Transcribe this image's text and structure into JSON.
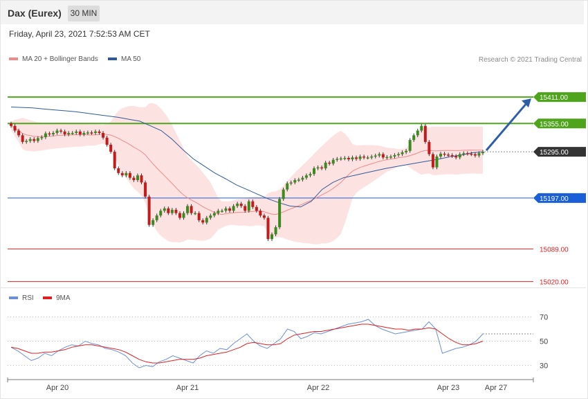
{
  "header": {
    "title": "Dax (Eurex)",
    "interval": "30 MIN"
  },
  "datetime": "Friday, April 23, 2021 7:52:53 AM CET",
  "legend": {
    "ma20": {
      "label": "MA 20 + Bollinger Bands",
      "color": "#f08a8a"
    },
    "ma50": {
      "label": "MA 50",
      "color": "#2f5a9a"
    }
  },
  "credit": "Research © 2021 Trading Central",
  "rsi_legend": {
    "rsi": {
      "label": "RSI",
      "color": "#6b8fd8"
    },
    "ma9": {
      "label": "9MA",
      "color": "#e02020"
    }
  },
  "chart_data": [
    {
      "type": "candlestick",
      "x_labels": [
        "Apr 20",
        "Apr 21",
        "Apr 22",
        "Apr 23",
        "Apr 27"
      ],
      "levels": [
        {
          "value": 15411.0,
          "label": "15411.00",
          "color": "#4ea51c",
          "style": "resistance"
        },
        {
          "value": 15355.0,
          "label": "15355.00",
          "color": "#4ea51c",
          "style": "resistance"
        },
        {
          "value": 15295.0,
          "label": "15295.00",
          "color": "#333333",
          "style": "last"
        },
        {
          "value": 15197.0,
          "label": "15197.00",
          "color": "#1a5fd8",
          "style": "pivot"
        },
        {
          "value": 15089.0,
          "label": "15089.00",
          "color": "#e02020",
          "style": "support"
        },
        {
          "value": 15020.0,
          "label": "15020.00",
          "color": "#e02020",
          "style": "support"
        }
      ],
      "y_range": [
        15000,
        15470
      ],
      "projection": {
        "from": 15295,
        "to": 15411
      },
      "series": {
        "close": [
          15350,
          15340,
          15330,
          15316,
          15318,
          15322,
          15318,
          15324,
          15326,
          15334,
          15332,
          15335,
          15340,
          15338,
          15332,
          15335,
          15335,
          15338,
          15332,
          15335,
          15336,
          15335,
          15338,
          15335,
          15325,
          15310,
          15295,
          15260,
          15250,
          15245,
          15250,
          15240,
          15235,
          15245,
          15230,
          15200,
          15140,
          15150,
          15160,
          15170,
          15175,
          15165,
          15172,
          15165,
          15155,
          15165,
          15180,
          15165,
          15165,
          15150,
          15145,
          15155,
          15160,
          15165,
          15170,
          15170,
          15175,
          15170,
          15180,
          15185,
          15180,
          15170,
          15190,
          15178,
          15170,
          15160,
          15155,
          15110,
          15120,
          15135,
          15195,
          15215,
          15228,
          15230,
          15235,
          15236,
          15240,
          15245,
          15248,
          15260,
          15262,
          15260,
          15272,
          15270,
          15278,
          15280,
          15281,
          15282,
          15279,
          15283,
          15280,
          15285,
          15283,
          15283,
          15285,
          15287,
          15290,
          15283,
          15284,
          15285,
          15288,
          15290,
          15294,
          15297,
          15320,
          15330,
          15340,
          15350,
          15316,
          15290,
          15262,
          15285,
          15291,
          15289,
          15288,
          15286,
          15283,
          15290,
          15292,
          15291,
          15290,
          15287,
          15292,
          15295
        ]
      },
      "ma50": [
        15390,
        15389,
        15388,
        15386,
        15384,
        15382,
        15380,
        15377,
        15374,
        15371,
        15368,
        15364,
        15360,
        15350,
        15340,
        15322,
        15300,
        15280,
        15265,
        15250,
        15238,
        15225,
        15215,
        15205,
        15195,
        15187,
        15180,
        15178,
        15190,
        15215,
        15230,
        15240,
        15245,
        15250,
        15255,
        15260,
        15264,
        15268,
        15272,
        15276,
        15280,
        15285,
        15288,
        15293,
        15295
      ]
    },
    {
      "type": "line",
      "title": "RSI",
      "y_ticks": [
        70,
        50,
        30
      ],
      "y_range": [
        20,
        80
      ],
      "series": [
        {
          "name": "RSI",
          "values": [
            45,
            42,
            38,
            34,
            36,
            40,
            38,
            42,
            45,
            47,
            46,
            50,
            48,
            47,
            44,
            43,
            41,
            38,
            32,
            28,
            30,
            29,
            33,
            35,
            38,
            36,
            34,
            32,
            38,
            42,
            40,
            44,
            43,
            48,
            52,
            56,
            50,
            46,
            44,
            48,
            52,
            60,
            58,
            52,
            54,
            57,
            56,
            58,
            60,
            62,
            64,
            65,
            66,
            68,
            63,
            60,
            58,
            56,
            57,
            58,
            59,
            60,
            66,
            60,
            40,
            42,
            44,
            45,
            47,
            50,
            56
          ]
        },
        {
          "name": "9MA",
          "values": [
            45,
            44,
            42,
            40,
            40,
            41,
            41,
            42,
            43,
            45,
            46,
            47,
            47,
            46,
            45,
            44,
            43,
            41,
            38,
            35,
            33,
            32,
            32,
            33,
            34,
            35,
            35,
            35,
            36,
            38,
            39,
            40,
            41,
            43,
            45,
            48,
            49,
            48,
            47,
            47,
            48,
            52,
            55,
            56,
            57,
            58,
            58,
            59,
            60,
            61,
            62,
            63,
            64,
            64,
            63,
            62,
            61,
            60,
            60,
            59,
            60,
            60,
            61,
            60,
            56,
            52,
            49,
            47,
            47,
            48,
            50
          ]
        }
      ]
    }
  ]
}
